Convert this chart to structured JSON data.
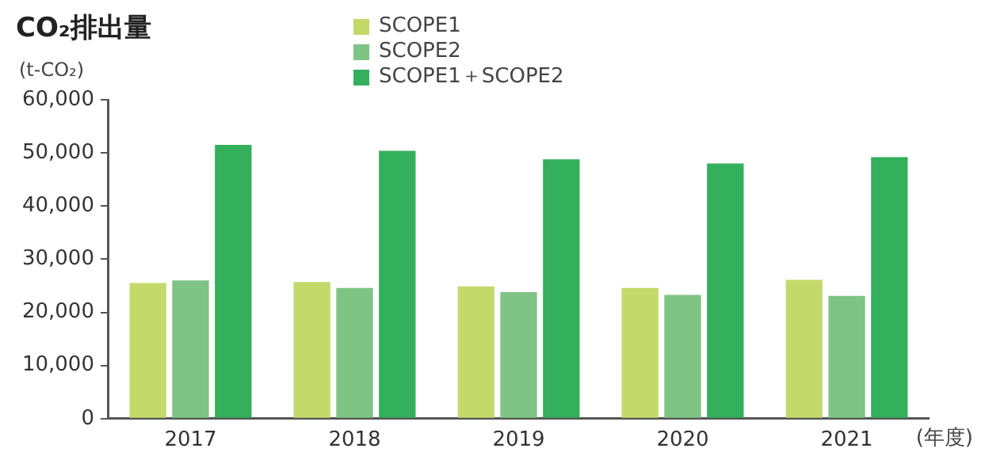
{
  "chart_data": {
    "type": "bar",
    "title": "CO₂排出量",
    "ylabel": "(t-CO₂)",
    "xlabel": "(年度)",
    "categories": [
      "2017",
      "2018",
      "2019",
      "2020",
      "2021"
    ],
    "series": [
      {
        "name": "SCOPE1",
        "color": "#c3da6b",
        "values": [
          25500,
          25700,
          24900,
          24600,
          26100
        ]
      },
      {
        "name": "SCOPE2",
        "color": "#7fc385",
        "values": [
          26000,
          24600,
          23800,
          23300,
          23100
        ]
      },
      {
        "name": "SCOPE1＋SCOPE2",
        "color": "#34af5c",
        "values": [
          51500,
          50400,
          48800,
          48000,
          49200
        ]
      }
    ],
    "ylim": [
      0,
      60000
    ],
    "yticks": [
      {
        "value": 0,
        "label": "0"
      },
      {
        "value": 10000,
        "label": "10,000"
      },
      {
        "value": 20000,
        "label": "20,000"
      },
      {
        "value": 30000,
        "label": "30,000"
      },
      {
        "value": 40000,
        "label": "40,000"
      },
      {
        "value": 50000,
        "label": "50,000"
      },
      {
        "value": 60000,
        "label": "60,000"
      }
    ],
    "grid": false,
    "legend": "top"
  }
}
